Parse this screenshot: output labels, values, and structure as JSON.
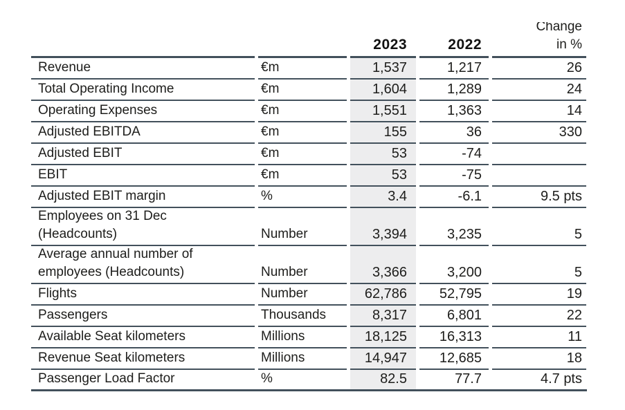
{
  "table": {
    "colors": {
      "border": "#42505b",
      "highlight_column_bg": "#ededee",
      "text": "#1d1d1b"
    },
    "header": {
      "label": "",
      "unit": "",
      "year_current": "2023",
      "year_prior": "2022",
      "change_line1": "Change",
      "change_line2": "in %"
    },
    "rows": [
      {
        "label": "Revenue",
        "unit": "€m",
        "y2023": "1,537",
        "y2022": "1,217",
        "change": "26"
      },
      {
        "label": "Total Operating Income",
        "unit": "€m",
        "y2023": "1,604",
        "y2022": "1,289",
        "change": "24"
      },
      {
        "label": "Operating Expenses",
        "unit": "€m",
        "y2023": "1,551",
        "y2022": "1,363",
        "change": "14"
      },
      {
        "label": "Adjusted EBITDA",
        "unit": "€m",
        "y2023": "155",
        "y2022": "36",
        "change": "330"
      },
      {
        "label": "Adjusted EBIT",
        "unit": "€m",
        "y2023": "53",
        "y2022": "-74",
        "change": ""
      },
      {
        "label": "EBIT",
        "unit": "€m",
        "y2023": "53",
        "y2022": "-75",
        "change": ""
      },
      {
        "label": "Adjusted EBIT margin",
        "unit": "%",
        "y2023": "3.4",
        "y2022": "-6.1",
        "change": "9.5 pts"
      },
      {
        "label": [
          "Employees on 31 Dec",
          "(Headcounts)"
        ],
        "unit": "Number",
        "y2023": "3,394",
        "y2022": "3,235",
        "change": "5"
      },
      {
        "label": [
          "Average annual number of",
          "employees (Headcounts)"
        ],
        "unit": "Number",
        "y2023": "3,366",
        "y2022": "3,200",
        "change": "5"
      },
      {
        "label": "Flights",
        "unit": "Number",
        "y2023": "62,786",
        "y2022": "52,795",
        "change": "19"
      },
      {
        "label": "Passengers",
        "unit": "Thousands",
        "y2023": "8,317",
        "y2022": "6,801",
        "change": "22"
      },
      {
        "label": "Available Seat kilometers",
        "unit": "Millions",
        "y2023": "18,125",
        "y2022": "16,313",
        "change": "11"
      },
      {
        "label": "Revenue Seat kilometers",
        "unit": "Millions",
        "y2023": "14,947",
        "y2022": "12,685",
        "change": "18"
      },
      {
        "label": "Passenger Load Factor",
        "unit": "%",
        "y2023": "82.5",
        "y2022": "77.7",
        "change": "4.7 pts"
      }
    ]
  }
}
